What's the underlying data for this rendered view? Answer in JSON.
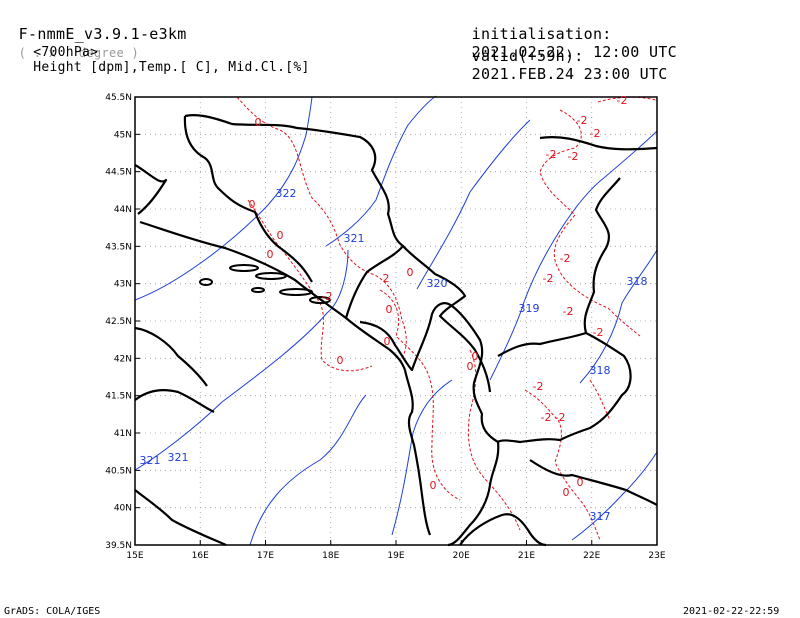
{
  "header": {
    "model": "F-nmmE_v3.9.1-e3km",
    "unit_hint": "( . x . degree )",
    "level_label": "<700hPa>",
    "fields": "Height [dpm],Temp.[ C], Mid.Cl.[%]",
    "init_label": "initialisation:",
    "init_value": "2021.02.22.  12:00 UTC",
    "valid_label": "valid(+59h):",
    "valid_value": "2021.FEB.24 23:00 UTC"
  },
  "footer": {
    "left": "GrADS: COLA/IGES",
    "right": "2021-02-22-22:59"
  },
  "map": {
    "lon_labels": [
      "15E",
      "16E",
      "17E",
      "18E",
      "19E",
      "20E",
      "21E",
      "22E",
      "23E"
    ],
    "lat_labels": [
      "45.5N",
      "45N",
      "44.5N",
      "44N",
      "43.5N",
      "43N",
      "42.5N",
      "42N",
      "41.5N",
      "41N",
      "40.5N",
      "40N",
      "39.5N"
    ],
    "colors": {
      "coast": "#000000",
      "height": "#1f3fd8",
      "temp": "#e0141e",
      "grid": "#9a9a9a"
    },
    "height_labels": [
      "322",
      "321",
      "320",
      "319",
      "318",
      "318",
      "317",
      "321",
      "321"
    ],
    "temp_labels": [
      "0",
      "0",
      "0",
      "0",
      "-2",
      "0",
      "0",
      "2",
      "0",
      "0",
      "-2",
      "-2",
      "-2",
      "-2",
      "-2",
      "-2",
      "-2",
      "-2",
      "-2",
      "-2",
      "-2",
      "-2",
      "0",
      "0",
      "0",
      "0",
      "0"
    ]
  }
}
